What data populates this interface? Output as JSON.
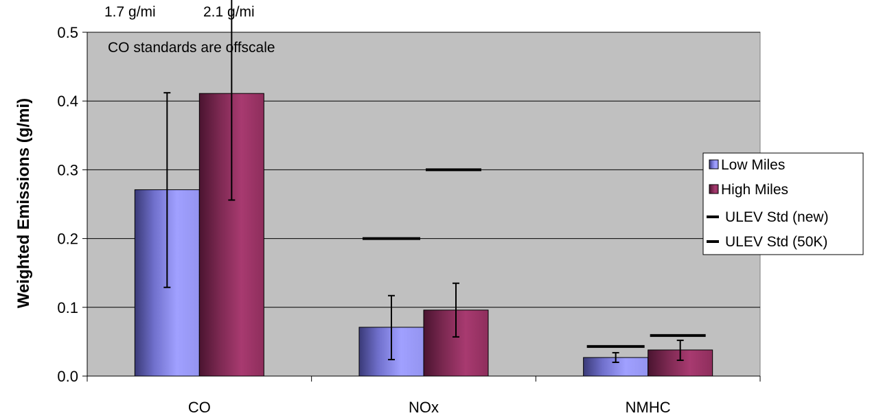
{
  "chart_data": {
    "type": "bar",
    "title": "",
    "xlabel": "",
    "ylabel": "Weighted Emissions (g/mi)",
    "ylim": [
      0,
      0.5
    ],
    "yticks": [
      "0.0",
      "0.1",
      "0.2",
      "0.3",
      "0.4",
      "0.5"
    ],
    "categories": [
      "CO",
      "NOx",
      "NMHC"
    ],
    "grid": true,
    "legend_position": "right",
    "series": [
      {
        "name": "Low Miles",
        "color": "#9999ff",
        "values": [
          0.271,
          0.071,
          0.027
        ],
        "error_low": [
          0.129,
          0.024,
          0.02
        ],
        "error_high": [
          0.412,
          0.117,
          0.034
        ]
      },
      {
        "name": "High Miles",
        "color": "#993366",
        "values": [
          0.411,
          0.096,
          0.038
        ],
        "error_low": [
          0.256,
          0.057,
          0.023
        ],
        "error_high": [
          0.5,
          0.135,
          0.052
        ]
      }
    ],
    "standards": [
      {
        "name": "ULEV Std (new)",
        "values": [
          null,
          0.2,
          0.043
        ]
      },
      {
        "name": "ULEV Std (50K)",
        "values": [
          null,
          0.3,
          0.059
        ]
      }
    ],
    "annotations": {
      "note": "CO standards are offscale",
      "co_std_new": "1.7 g/mi",
      "co_std_50k": "2.1 g/mi"
    },
    "colors": {
      "plot_background": "#c0c0c0",
      "gridline": "#000000",
      "standard_line": "#000000",
      "error_bar": "#000000"
    }
  }
}
